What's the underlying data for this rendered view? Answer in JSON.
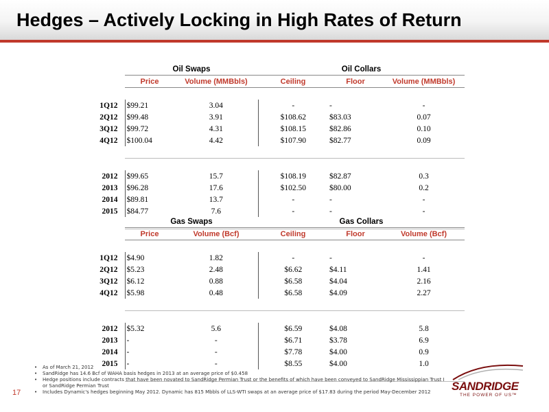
{
  "header": {
    "title": "Hedges – Actively Locking in High Rates of Return"
  },
  "oil": {
    "group_left": "Oil Swaps",
    "group_right": "Oil Collars",
    "columns": [
      "Price",
      "Volume (MMBbls)",
      "Ceiling",
      "Floor",
      "Volume (MMBbls)"
    ],
    "rows": [
      {
        "label": "1Q12",
        "price": "$99.21",
        "vol": "3.04",
        "ceiling": "-",
        "floor": "-",
        "cvol": "-"
      },
      {
        "label": "2Q12",
        "price": "$99.48",
        "vol": "3.91",
        "ceiling": "$108.62",
        "floor": "$83.03",
        "cvol": "0.07"
      },
      {
        "label": "3Q12",
        "price": "$99.72",
        "vol": "4.31",
        "ceiling": "$108.15",
        "floor": "$82.86",
        "cvol": "0.10"
      },
      {
        "label": "4Q12",
        "price": "$100.04",
        "vol": "4.42",
        "ceiling": "$107.90",
        "floor": "$82.77",
        "cvol": "0.09"
      },
      {
        "label": "2012",
        "price": "$99.65",
        "vol": "15.7",
        "ceiling": "$108.19",
        "floor": "$82.87",
        "cvol": "0.3"
      },
      {
        "label": "2013",
        "price": "$96.28",
        "vol": "17.6",
        "ceiling": "$102.50",
        "floor": "$80.00",
        "cvol": "0.2"
      },
      {
        "label": "2014",
        "price": "$89.81",
        "vol": "13.7",
        "ceiling": "-",
        "floor": "-",
        "cvol": "-"
      },
      {
        "label": "2015",
        "price": "$84.77",
        "vol": "7.6",
        "ceiling": "-",
        "floor": "-",
        "cvol": "-"
      }
    ]
  },
  "gas": {
    "group_left": "Gas Swaps",
    "group_right": "Gas Collars",
    "columns": [
      "Price",
      "Volume (Bcf)",
      "Ceiling",
      "Floor",
      "Volume (Bcf)"
    ],
    "rows": [
      {
        "label": "1Q12",
        "price": "$4.90",
        "vol": "1.82",
        "ceiling": "-",
        "floor": "-",
        "cvol": "-"
      },
      {
        "label": "2Q12",
        "price": "$5.23",
        "vol": "2.48",
        "ceiling": "$6.62",
        "floor": "$4.11",
        "cvol": "1.41"
      },
      {
        "label": "3Q12",
        "price": "$6.12",
        "vol": "0.88",
        "ceiling": "$6.58",
        "floor": "$4.04",
        "cvol": "2.16"
      },
      {
        "label": "4Q12",
        "price": "$5.98",
        "vol": "0.48",
        "ceiling": "$6.58",
        "floor": "$4.09",
        "cvol": "2.27"
      },
      {
        "label": "2012",
        "price": "$5.32",
        "vol": "5.6",
        "ceiling": "$6.59",
        "floor": "$4.08",
        "cvol": "5.8"
      },
      {
        "label": "2013",
        "price": "-",
        "vol": "-",
        "ceiling": "$6.71",
        "floor": "$3.78",
        "cvol": "6.9"
      },
      {
        "label": "2014",
        "price": "-",
        "vol": "-",
        "ceiling": "$7.78",
        "floor": "$4.00",
        "cvol": "0.9"
      },
      {
        "label": "2015",
        "price": "-",
        "vol": "-",
        "ceiling": "$8.55",
        "floor": "$4.00",
        "cvol": "1.0"
      }
    ]
  },
  "footnotes": [
    "As of March 21, 2012",
    "SandRidge has 14.6 Bcf of WAHA basis hedges in 2013 at an average price of $0.458",
    "Hedge positions include contracts that have been novated to SandRidge Permian Trust or the benefits of which have been conveyed to SandRidge Mississippian Trust I or SandRidge Permian Trust",
    "Includes Dynamic's hedges beginning May 2012. Dynamic has 815 Mbbls of LLS-WTI swaps at an average price of $17.83 during the period May-December 2012"
  ],
  "page_number": "17",
  "logo": {
    "wordmark": "SANDRIDGE",
    "tagline": "THE POWER OF US™"
  },
  "colors": {
    "accent": "#c0392b",
    "brand": "#7a0e0e"
  }
}
